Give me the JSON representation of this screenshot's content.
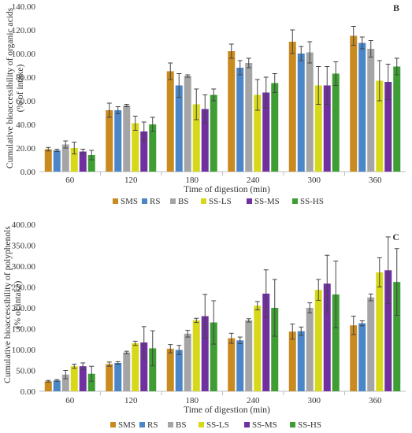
{
  "colors": {
    "SMS": "#C98A1F",
    "RS": "#4A86C8",
    "BS": "#A5A5A5",
    "SS-LS": "#D8D81A",
    "SS-MS": "#7030A0",
    "SS-HS": "#3E9E34",
    "axis": "#BFBFBF",
    "error": "#444444",
    "text": "#333333"
  },
  "chart_data": [
    {
      "panel_label": "B",
      "type": "bar",
      "title": "",
      "xlabel": "Time of digestion (min)",
      "ylabel": "Cumulative bioaccessibility of organic acids",
      "ylabel2": "(% of intake)",
      "ylim": [
        0,
        140
      ],
      "yticks": [
        "0.00",
        "20.00",
        "40.00",
        "60.00",
        "80.00",
        "100.00",
        "120.00",
        "140.00"
      ],
      "ytick_values": [
        0,
        20,
        40,
        60,
        80,
        100,
        120,
        140
      ],
      "categories": [
        "60",
        "120",
        "180",
        "240",
        "300",
        "360"
      ],
      "legend": "bottom",
      "series": [
        {
          "name": "SMS",
          "values": [
            19,
            52,
            85,
            102,
            110,
            115
          ],
          "errors": [
            1.5,
            6,
            7,
            6,
            10,
            8
          ]
        },
        {
          "name": "RS",
          "values": [
            18,
            52,
            73,
            88,
            100,
            109
          ],
          "errors": [
            1,
            3,
            10,
            6,
            6,
            5
          ]
        },
        {
          "name": "BS",
          "values": [
            23,
            56,
            81,
            92,
            101,
            104
          ],
          "errors": [
            3,
            1,
            1,
            4,
            9,
            7
          ]
        },
        {
          "name": "SS-LS",
          "values": [
            20,
            41,
            57,
            65,
            73,
            77
          ],
          "errors": [
            5,
            6,
            13,
            13,
            16,
            17
          ]
        },
        {
          "name": "SS-MS",
          "values": [
            17,
            34,
            53,
            67,
            73,
            76
          ],
          "errors": [
            2,
            8,
            12,
            13,
            16,
            15
          ]
        },
        {
          "name": "SS-HS",
          "values": [
            14,
            40,
            65,
            75,
            83,
            89
          ],
          "errors": [
            4,
            6,
            5,
            8,
            10,
            7
          ]
        }
      ]
    },
    {
      "panel_label": "C",
      "type": "bar",
      "title": "",
      "xlabel": "Time of digestion (min)",
      "ylabel": "Cumulative bioaccessibility of polyphenols",
      "ylabel2": "(% of intake)",
      "ylim": [
        0,
        400
      ],
      "yticks": [
        "0.00",
        "50.00",
        "100.00",
        "150.00",
        "200.00",
        "250.00",
        "300.00",
        "350.00",
        "400.00"
      ],
      "ytick_values": [
        0,
        50,
        100,
        150,
        200,
        250,
        300,
        350,
        400
      ],
      "categories": [
        "60",
        "120",
        "180",
        "240",
        "300",
        "360"
      ],
      "legend": "bottom",
      "series": [
        {
          "name": "SMS",
          "values": [
            24,
            65,
            102,
            127,
            143,
            158
          ],
          "errors": [
            2,
            5,
            10,
            12,
            18,
            22
          ]
        },
        {
          "name": "RS",
          "values": [
            26,
            68,
            99,
            122,
            144,
            163
          ],
          "errors": [
            2,
            3,
            11,
            8,
            10,
            6
          ]
        },
        {
          "name": "BS",
          "values": [
            40,
            93,
            138,
            170,
            200,
            225
          ],
          "errors": [
            10,
            3,
            8,
            4,
            12,
            8
          ]
        },
        {
          "name": "SS-LS",
          "values": [
            60,
            115,
            170,
            205,
            243,
            285
          ],
          "errors": [
            5,
            5,
            5,
            10,
            25,
            35
          ]
        },
        {
          "name": "SS-MS",
          "values": [
            60,
            117,
            180,
            234,
            258,
            290
          ],
          "errors": [
            8,
            38,
            52,
            57,
            68,
            80
          ]
        },
        {
          "name": "SS-HS",
          "values": [
            42,
            103,
            165,
            200,
            232,
            262
          ],
          "errors": [
            18,
            42,
            52,
            68,
            80,
            80
          ]
        }
      ]
    }
  ]
}
